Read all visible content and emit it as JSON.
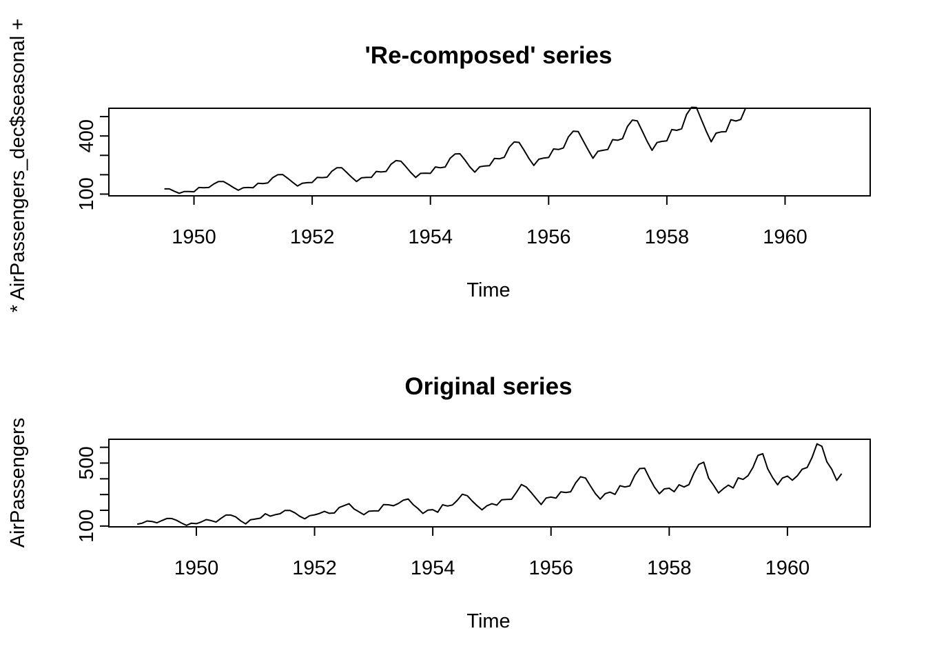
{
  "chart_data": [
    {
      "type": "line",
      "title": "'Re-composed' series",
      "xlabel": "Time",
      "ylabel": "AirPassengers_dec$trend * AirPassengers_dec$seasonal",
      "ylabel_visible": "* AirPassengers_dec$seasonal +",
      "xlim": [
        1948.56,
        1961.44
      ],
      "ylim": [
        91,
        543
      ],
      "x_ticks": [
        1950,
        1952,
        1954,
        1956,
        1958,
        1960
      ],
      "x_tick_labels": [
        "1950",
        "1952",
        "1954",
        "1956",
        "1958",
        "1960"
      ],
      "y_ticks": [
        100,
        200,
        300,
        400,
        500
      ],
      "y_tick_labels": [
        "100",
        "",
        "",
        "400",
        ""
      ],
      "x_start": 1949.5,
      "x_step": 0.0833333,
      "series": [
        {
          "values": [
            127,
            127,
            115,
            104,
            113,
            113,
            112,
            134,
            133,
            134,
            152,
            165,
            165,
            150,
            134,
            120,
            133,
            134,
            133,
            156,
            154,
            158,
            185,
            200,
            201,
            182,
            162,
            142,
            156,
            159,
            160,
            186,
            185,
            187,
            218,
            236,
            236,
            212,
            187,
            165,
            184,
            186,
            186,
            217,
            214,
            217,
            254,
            273,
            270,
            242,
            212,
            186,
            207,
            208,
            207,
            240,
            236,
            240,
            285,
            307,
            308,
            276,
            241,
            213,
            241,
            245,
            247,
            284,
            282,
            290,
            342,
            369,
            367,
            327,
            284,
            248,
            280,
            286,
            289,
            333,
            330,
            338,
            395,
            425,
            423,
            376,
            329,
            285,
            321,
            326,
            330,
            381,
            378,
            386,
            449,
            482,
            478,
            426,
            372,
            326,
            366,
            372,
            375,
            433,
            429,
            437,
            511,
            548,
            547,
            485,
            424,
            370,
            415,
            421,
            422,
            484,
            477,
            485,
            545
          ]
        }
      ]
    },
    {
      "type": "line",
      "title": "Original series",
      "xlabel": "Time",
      "ylabel": "AirPassengers",
      "xlim": [
        1948.52,
        1961.4
      ],
      "ylim": [
        95,
        651
      ],
      "x_ticks": [
        1950,
        1952,
        1954,
        1956,
        1958,
        1960
      ],
      "x_tick_labels": [
        "1950",
        "1952",
        "1954",
        "1956",
        "1958",
        "1960"
      ],
      "y_ticks": [
        100,
        200,
        300,
        400,
        500,
        600
      ],
      "y_tick_labels": [
        "100",
        "",
        "",
        "",
        "500",
        ""
      ],
      "x_start": 1949.0,
      "x_step": 0.0833333,
      "series": [
        {
          "values": [
            112,
            118,
            132,
            129,
            121,
            135,
            148,
            148,
            136,
            119,
            104,
            118,
            115,
            126,
            141,
            135,
            125,
            149,
            170,
            170,
            158,
            133,
            114,
            140,
            145,
            150,
            178,
            163,
            172,
            178,
            199,
            199,
            184,
            162,
            146,
            166,
            171,
            180,
            193,
            181,
            183,
            218,
            230,
            242,
            209,
            191,
            172,
            194,
            196,
            196,
            236,
            235,
            229,
            243,
            264,
            272,
            237,
            211,
            180,
            201,
            204,
            188,
            235,
            227,
            234,
            264,
            302,
            293,
            259,
            229,
            203,
            229,
            242,
            233,
            267,
            269,
            270,
            315,
            364,
            347,
            312,
            274,
            237,
            278,
            284,
            277,
            317,
            313,
            318,
            374,
            413,
            405,
            355,
            306,
            271,
            306,
            315,
            301,
            356,
            348,
            355,
            422,
            465,
            467,
            404,
            347,
            305,
            336,
            340,
            318,
            362,
            348,
            363,
            435,
            491,
            505,
            404,
            359,
            310,
            337,
            360,
            342,
            406,
            396,
            420,
            472,
            548,
            559,
            463,
            407,
            362,
            405,
            417,
            391,
            419,
            461,
            472,
            535,
            622,
            606,
            508,
            461,
            390,
            432
          ]
        }
      ]
    }
  ]
}
